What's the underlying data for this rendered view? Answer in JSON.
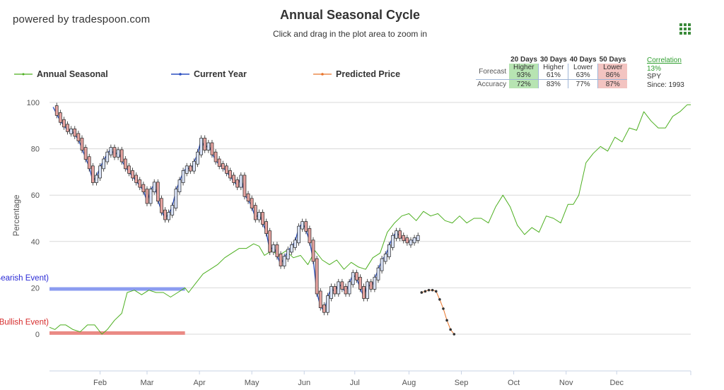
{
  "header": {
    "brand": "powered by tradespoon.com",
    "title": "Annual Seasonal Cycle",
    "subtitle": "Click and drag in the plot area to zoom in",
    "menu_icon": "hamburger-grid-icon"
  },
  "legend": [
    {
      "label": "Annual Seasonal",
      "color": "#4caf1f"
    },
    {
      "label": "Current Year",
      "color": "#2b4fc1"
    },
    {
      "label": "Predicted Price",
      "color": "#e8742a"
    }
  ],
  "stats": {
    "columns": [
      "20 Days",
      "30 Days",
      "40 Days",
      "50 Days"
    ],
    "forecast_label": "Forecast",
    "accuracy_label": "Accuracy",
    "forecast_dir": [
      "Higher",
      "Higher",
      "Lower",
      "Lower"
    ],
    "forecast_pct": [
      "93%",
      "61%",
      "63%",
      "86%"
    ],
    "accuracy": [
      "72%",
      "83%",
      "77%",
      "87%"
    ],
    "highlight": [
      "green",
      "none",
      "none",
      "red"
    ]
  },
  "side": {
    "correlation_label": "Correlation",
    "correlation_value": "13%",
    "symbol": "SPY",
    "since": "Since: 1993"
  },
  "chart_data": {
    "type": "line",
    "title": "Annual Seasonal Cycle",
    "ylabel": "Percentage",
    "ylim": [
      -16,
      102
    ],
    "yticks": [
      0,
      20,
      40,
      60,
      80,
      100
    ],
    "grid": true,
    "xlabels": [
      "Feb",
      "Mar",
      "Apr",
      "May",
      "Jun",
      "Jul",
      "Aug",
      "Sep",
      "Oct",
      "Nov",
      "Dec"
    ],
    "xlabel_days": [
      39,
      65,
      94,
      123,
      152,
      180,
      210,
      239,
      268,
      297,
      325
    ],
    "xlim": [
      11,
      366
    ],
    "annotations": [
      {
        "text": "LL (Bearish Event)",
        "color": "#2b2bd6",
        "y": 19.5,
        "x_start": 11,
        "x_end": 86,
        "band_color": "#8b9cf0"
      },
      {
        "text": "Y (Bullish Event)",
        "color": "#d62b2b",
        "y": 0.5,
        "x_start": 11,
        "x_end": 86,
        "band_color": "#ea8a84"
      }
    ],
    "series": [
      {
        "name": "Annual Seasonal",
        "color": "#4caf1f",
        "x": [
          11,
          14,
          17,
          20,
          24,
          28,
          32,
          36,
          40,
          43,
          47,
          51,
          54,
          58,
          62,
          66,
          70,
          74,
          78,
          82,
          86,
          88,
          92,
          96,
          100,
          104,
          108,
          112,
          116,
          120,
          124,
          127,
          130,
          134,
          138,
          142,
          146,
          150,
          154,
          158,
          162,
          166,
          170,
          174,
          178,
          182,
          186,
          190,
          194,
          198,
          202,
          206,
          210,
          214,
          218,
          222,
          226,
          230,
          234,
          238,
          242,
          246,
          250,
          254,
          258,
          262,
          266,
          270,
          274,
          278,
          282,
          286,
          290,
          294,
          298,
          301,
          304,
          308,
          312,
          316,
          320,
          324,
          328,
          332,
          336,
          340,
          344,
          348,
          352,
          356,
          360,
          364,
          366
        ],
        "y": [
          3,
          2,
          4,
          4,
          2,
          1,
          4,
          4,
          0,
          2,
          6,
          9,
          18,
          19,
          17,
          19,
          18,
          18,
          16,
          18,
          20,
          18,
          22,
          26,
          28,
          30,
          33,
          35,
          37,
          37,
          39,
          38,
          34,
          36,
          34,
          36,
          33,
          34,
          30,
          36,
          32,
          30,
          32,
          28,
          31,
          29,
          28,
          33,
          35,
          44,
          48,
          51,
          52,
          49,
          53,
          51,
          52,
          49,
          48,
          51,
          48,
          50,
          50,
          48,
          55,
          60,
          55,
          47,
          43,
          46,
          44,
          51,
          50,
          48,
          56,
          56,
          60,
          74,
          78,
          81,
          79,
          85,
          83,
          89,
          88,
          96,
          92,
          89,
          89,
          94,
          96,
          99,
          99
        ]
      },
      {
        "name": "Current Year",
        "color": "#2b4fc1",
        "x": [
          13,
          15,
          17,
          19,
          21,
          23,
          25,
          27,
          29,
          31,
          33,
          35,
          37,
          39,
          41,
          43,
          45,
          47,
          49,
          51,
          53,
          55,
          57,
          59,
          61,
          63,
          65,
          67,
          69,
          71,
          73,
          75,
          77,
          79,
          81,
          83,
          85,
          87,
          89,
          91,
          93,
          95,
          97,
          99,
          101,
          103,
          105,
          107,
          109,
          111,
          113,
          115,
          117,
          119,
          121,
          123,
          125,
          127,
          129,
          131,
          133,
          135,
          137,
          139,
          141,
          143,
          145,
          147,
          149,
          151,
          153,
          155,
          157,
          159,
          161,
          163,
          165,
          167,
          169,
          171,
          173,
          175,
          177,
          179,
          181,
          183,
          185,
          187,
          189,
          191,
          193,
          195,
          197,
          199,
          201,
          203,
          205,
          207,
          209,
          211,
          213,
          215
        ],
        "y": [
          98,
          95,
          92,
          90,
          88,
          88,
          86,
          84,
          80,
          76,
          72,
          66,
          68,
          72,
          75,
          78,
          80,
          77,
          79,
          75,
          72,
          70,
          68,
          66,
          64,
          62,
          57,
          62,
          65,
          58,
          53,
          50,
          52,
          55,
          62,
          66,
          70,
          72,
          71,
          74,
          78,
          84,
          80,
          82,
          78,
          75,
          73,
          72,
          70,
          68,
          66,
          64,
          68,
          60,
          58,
          55,
          50,
          52,
          48,
          44,
          36,
          38,
          34,
          30,
          33,
          36,
          38,
          40,
          46,
          48,
          45,
          40,
          32,
          18,
          12,
          10,
          16,
          20,
          18,
          22,
          20,
          18,
          22,
          26,
          24,
          20,
          16,
          22,
          20,
          24,
          28,
          32,
          34,
          38,
          42,
          44,
          42,
          41,
          40,
          40,
          41,
          42
        ]
      },
      {
        "name": "Predicted Price",
        "color": "#e8742a",
        "x": [
          217,
          219,
          221,
          223,
          225,
          227,
          229,
          231,
          233,
          235
        ],
        "y": [
          18,
          18.5,
          19,
          19,
          18.5,
          15,
          11,
          6,
          2,
          0
        ]
      }
    ]
  }
}
